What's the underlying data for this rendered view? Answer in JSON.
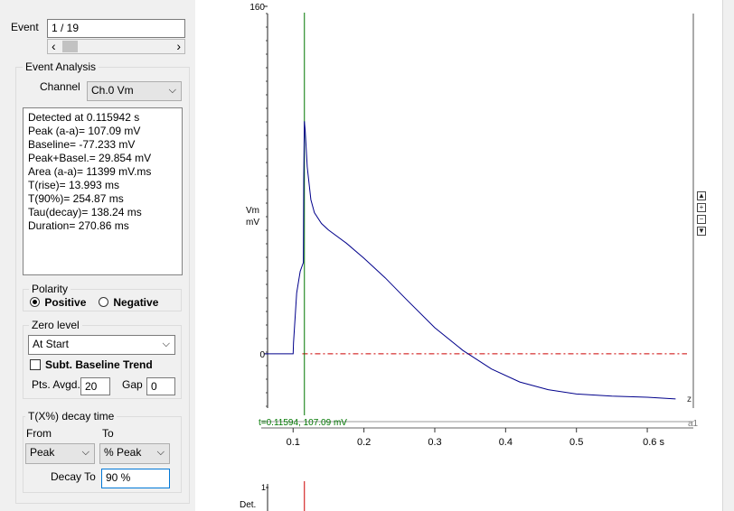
{
  "event": {
    "label": "Event",
    "value": "1 / 19"
  },
  "analysis": {
    "group_title": "Event Analysis",
    "channel_label": "Channel",
    "channel_value": "Ch.0 Vm",
    "results": [
      "Detected at 0.115942 s",
      "Peak (a-a)= 107.09 mV",
      "Baseline= -77.233 mV",
      "Peak+Basel.= 29.854 mV",
      "Area (a-a)= 11399 mV.ms",
      "T(rise)= 13.993 ms",
      "T(90%)= 254.87 ms",
      "Tau(decay)= 138.24 ms",
      "Duration= 270.86 ms"
    ]
  },
  "polarity": {
    "title": "Polarity",
    "positive_label": "Positive",
    "negative_label": "Negative",
    "selected": "Positive"
  },
  "zero_level": {
    "title": "Zero level",
    "mode_value": "At Start",
    "subtract_trend_label": "Subt. Baseline Trend",
    "subtract_trend_checked": false,
    "pts_avgd_label": "Pts. Avgd.",
    "pts_avgd_value": "20",
    "gap_label": "Gap",
    "gap_value": "0"
  },
  "decay_time": {
    "title": "T(X%) decay time",
    "from_label": "From",
    "to_label": "To",
    "from_value": "Peak",
    "to_value": "% Peak",
    "decay_to_label": "Decay To",
    "decay_to_value": "90 %"
  },
  "icons": {
    "scroll_left": "‹",
    "scroll_right": "›",
    "dropdown": "⌵",
    "zoom_up": "▲",
    "zoom_in": "+",
    "zoom_out": "−",
    "zoom_down": "▼"
  },
  "chart_data": {
    "type": "line",
    "series": [
      {
        "color": "#00008b",
        "x": [
          0.06,
          0.1,
          0.1005,
          0.105,
          0.11,
          0.1145,
          0.115,
          0.1159,
          0.117,
          0.12,
          0.125,
          0.13,
          0.14,
          0.15,
          0.175,
          0.2,
          0.23,
          0.26,
          0.3,
          0.34,
          0.38,
          0.42,
          0.46,
          0.5,
          0.55,
          0.6,
          0.64
        ],
        "y": [
          0.0,
          0.0,
          5.0,
          28.0,
          38.0,
          42.0,
          80.0,
          107.09,
          103.0,
          86.0,
          71.0,
          65.0,
          60.0,
          57.0,
          51.0,
          44.0,
          35.0,
          25.0,
          12.0,
          1.5,
          -7.0,
          -13.0,
          -16.5,
          -18.5,
          -19.5,
          -20.0,
          -20.8
        ]
      }
    ],
    "baseline_y": 0,
    "cursor_x": 0.11594,
    "xlim": [
      0.055,
      0.665
    ],
    "ylim": [
      -25,
      160
    ],
    "x_ticks": [
      0.1,
      0.2,
      0.3,
      0.4,
      0.5,
      0.6
    ],
    "x_tick_labels": [
      "0.1",
      "0.2",
      "0.3",
      "0.4",
      "0.5",
      "0.6 s"
    ],
    "y_ticks": [
      0,
      160
    ],
    "y_tick_labels": [
      "0",
      "160"
    ],
    "ylabel_line1": "Vm",
    "ylabel_line2": "mV",
    "cursor_readout": "t=0.11594, 107.09 mV",
    "trace_end_label": "z",
    "axis_end_label": "a1",
    "det_label": "Det.",
    "det_tick": "1",
    "colors": {
      "trace": "#00008b",
      "cursor": "#007700",
      "baseline": "#cc0000",
      "readout": "#007700"
    }
  }
}
